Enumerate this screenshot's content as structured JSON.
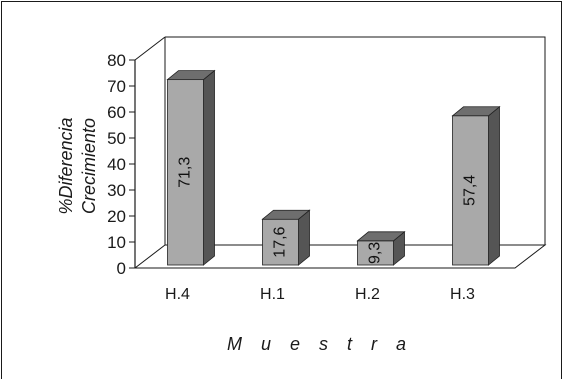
{
  "chart_data": {
    "type": "bar",
    "categories": [
      "H.4",
      "H.1",
      "H.2",
      "H.3"
    ],
    "values": [
      71.3,
      17.6,
      9.3,
      57.4
    ],
    "data_labels": [
      "71,3",
      "17,6",
      "9,3",
      "57,4"
    ],
    "title": "",
    "xlabel": "Muestra",
    "ylabel_lines": [
      "%Diferencia",
      "Crecimiento"
    ],
    "ylim": [
      0,
      80
    ],
    "yticks": [
      0,
      10,
      20,
      30,
      40,
      50,
      60,
      70,
      80
    ],
    "grid": false,
    "legend": "none",
    "three_d": true,
    "colors": {
      "bar_front": "#a9a9a9",
      "bar_top": "#6e6e6e",
      "bar_side": "#555555",
      "axis": "#1a1a1a",
      "frame": "#1a1a1a"
    }
  }
}
